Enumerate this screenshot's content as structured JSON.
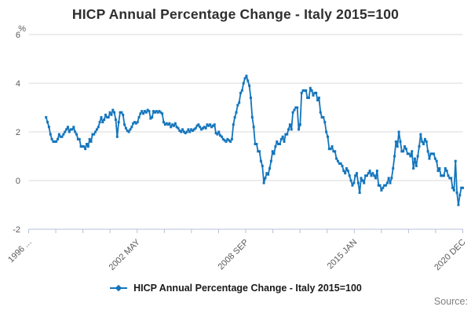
{
  "title": "HICP Annual Percentage Change - Italy 2015=100",
  "legend": {
    "label": "HICP Annual Percentage Change - Italy 2015=100"
  },
  "source": {
    "label": "Source:"
  },
  "y_axis": {
    "unit": "%",
    "tick_labels": [
      6,
      4,
      2,
      0,
      -2
    ],
    "min": -2,
    "max": 6
  },
  "x_axis": {
    "labels": [
      "1996 ...",
      "2002 MAY",
      "2008 SEP",
      "2015 JAN",
      "2020 DEC"
    ],
    "total_ticks": 17,
    "labeled_every_nth_tick": 4
  },
  "colors": {
    "series": "#1375bc",
    "grid": "#d9d9d9",
    "axis": "#b5c0da",
    "tick_text": "#5a5a5a",
    "title_text": "#2e2e2e"
  },
  "chart_data": {
    "type": "line",
    "series": [
      {
        "name": "HICP Annual Percentage Change - Italy 2015=100",
        "start": "1997-01",
        "end": "2020-12"
      }
    ],
    "frequency": "monthly",
    "x_axis_start": "1996-01",
    "x_axis_end": "2020-12",
    "ylabel": "%",
    "ylim": [
      -2,
      6
    ],
    "grid": "horizontal-only",
    "legend_position": "bottom-center",
    "values": [
      2.6,
      2.4,
      2.2,
      1.9,
      1.7,
      1.6,
      1.6,
      1.6,
      1.7,
      1.9,
      1.8,
      1.8,
      1.9,
      2.0,
      2.1,
      2.2,
      2.0,
      2.1,
      2.1,
      2.2,
      2.0,
      1.9,
      1.7,
      1.7,
      1.4,
      1.4,
      1.4,
      1.3,
      1.5,
      1.4,
      1.7,
      1.6,
      1.9,
      1.9,
      2.0,
      2.1,
      2.2,
      2.4,
      2.6,
      2.4,
      2.5,
      2.7,
      2.6,
      2.6,
      2.8,
      2.7,
      2.9,
      2.8,
      2.5,
      1.8,
      2.4,
      2.8,
      2.8,
      2.7,
      2.3,
      2.15,
      2.05,
      2.0,
      2.1,
      2.2,
      2.35,
      2.4,
      2.35,
      2.4,
      2.6,
      2.75,
      2.85,
      2.75,
      2.85,
      2.8,
      2.9,
      2.85,
      2.55,
      2.6,
      2.85,
      2.8,
      2.85,
      2.8,
      2.85,
      2.8,
      2.75,
      2.4,
      2.3,
      2.35,
      2.3,
      2.35,
      2.2,
      2.3,
      2.25,
      2.35,
      2.2,
      2.15,
      2.05,
      2.0,
      2.1,
      2.0,
      1.95,
      2.0,
      2.1,
      2.0,
      2.1,
      2.05,
      2.1,
      2.15,
      2.25,
      2.3,
      2.2,
      2.1,
      2.15,
      2.2,
      2.15,
      2.3,
      2.25,
      2.3,
      2.2,
      2.25,
      2.3,
      1.95,
      1.9,
      2.0,
      1.85,
      1.8,
      1.7,
      1.65,
      1.6,
      1.7,
      1.65,
      1.6,
      1.7,
      2.3,
      2.6,
      2.8,
      3.1,
      3.2,
      3.6,
      3.7,
      4.0,
      4.2,
      4.3,
      4.1,
      3.9,
      3.4,
      2.6,
      2.2,
      1.5,
      1.5,
      1.2,
      1.2,
      0.8,
      0.6,
      -0.1,
      0.1,
      0.3,
      0.25,
      0.5,
      0.8,
      1.2,
      1.1,
      1.4,
      1.6,
      1.5,
      1.5,
      1.7,
      1.8,
      1.6,
      1.9,
      1.9,
      2.1,
      2.3,
      2.1,
      2.8,
      2.9,
      3.0,
      3.0,
      2.1,
      2.3,
      3.6,
      3.7,
      3.7,
      3.7,
      3.4,
      3.4,
      3.8,
      3.7,
      3.5,
      3.6,
      3.6,
      3.3,
      3.4,
      2.8,
      2.6,
      2.6,
      2.4,
      2.0,
      1.8,
      1.3,
      1.3,
      1.4,
      1.2,
      1.2,
      0.9,
      0.8,
      0.7,
      0.7,
      0.6,
      0.4,
      0.3,
      0.5,
      0.4,
      0.2,
      0.0,
      -0.2,
      -0.1,
      0.2,
      0.3,
      -0.1,
      -0.5,
      0.1,
      0.0,
      -0.1,
      0.2,
      0.2,
      0.3,
      0.4,
      0.2,
      0.3,
      0.2,
      0.1,
      0.4,
      -0.2,
      -0.2,
      -0.4,
      -0.3,
      -0.2,
      -0.2,
      -0.1,
      0.1,
      -0.1,
      0.1,
      0.5,
      1.0,
      1.6,
      1.4,
      2.0,
      1.6,
      1.2,
      1.2,
      1.4,
      1.3,
      1.1,
      1.1,
      1.0,
      1.2,
      0.5,
      0.9,
      0.6,
      1.0,
      1.4,
      1.9,
      1.6,
      1.5,
      1.7,
      1.6,
      1.2,
      0.9,
      1.1,
      1.1,
      1.1,
      0.9,
      0.8,
      0.4,
      0.5,
      0.2,
      0.2,
      0.2,
      0.5,
      0.4,
      0.2,
      0.1,
      0.1,
      -0.3,
      -0.4,
      0.8,
      -0.5,
      -1.0,
      -0.6,
      -0.3,
      -0.3
    ]
  }
}
